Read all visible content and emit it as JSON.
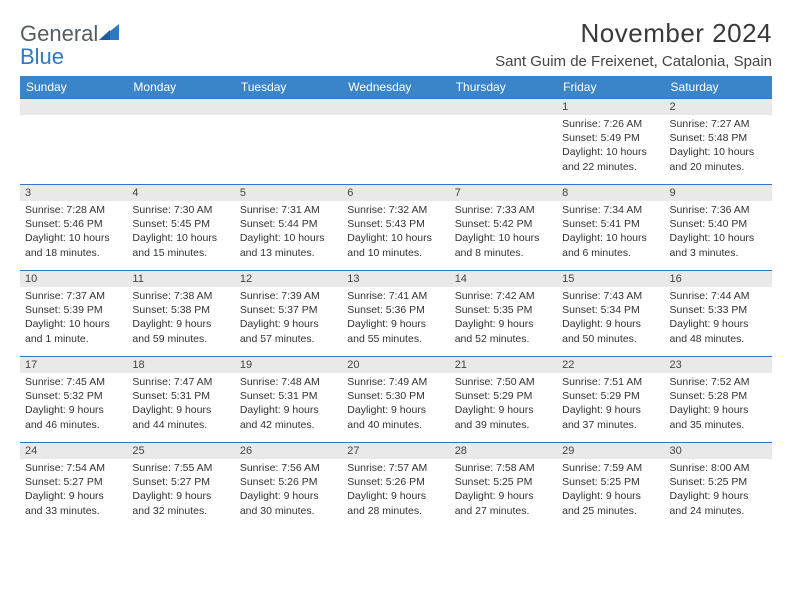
{
  "brand": {
    "part1": "General",
    "part2": "Blue"
  },
  "title": "November 2024",
  "location": "Sant Guim de Freixenet, Catalonia, Spain",
  "colors": {
    "header_bg": "#3a85c9",
    "header_text": "#ffffff",
    "daynum_bg": "#e9e9e9",
    "border": "#2f78c2",
    "brand_gray": "#555c63",
    "brand_blue": "#2f78c2",
    "page_bg": "#ffffff"
  },
  "weekdays": [
    "Sunday",
    "Monday",
    "Tuesday",
    "Wednesday",
    "Thursday",
    "Friday",
    "Saturday"
  ],
  "weeks": [
    [
      null,
      null,
      null,
      null,
      null,
      {
        "n": "1",
        "sr": "Sunrise: 7:26 AM",
        "ss": "Sunset: 5:49 PM",
        "dl": "Daylight: 10 hours and 22 minutes."
      },
      {
        "n": "2",
        "sr": "Sunrise: 7:27 AM",
        "ss": "Sunset: 5:48 PM",
        "dl": "Daylight: 10 hours and 20 minutes."
      }
    ],
    [
      {
        "n": "3",
        "sr": "Sunrise: 7:28 AM",
        "ss": "Sunset: 5:46 PM",
        "dl": "Daylight: 10 hours and 18 minutes."
      },
      {
        "n": "4",
        "sr": "Sunrise: 7:30 AM",
        "ss": "Sunset: 5:45 PM",
        "dl": "Daylight: 10 hours and 15 minutes."
      },
      {
        "n": "5",
        "sr": "Sunrise: 7:31 AM",
        "ss": "Sunset: 5:44 PM",
        "dl": "Daylight: 10 hours and 13 minutes."
      },
      {
        "n": "6",
        "sr": "Sunrise: 7:32 AM",
        "ss": "Sunset: 5:43 PM",
        "dl": "Daylight: 10 hours and 10 minutes."
      },
      {
        "n": "7",
        "sr": "Sunrise: 7:33 AM",
        "ss": "Sunset: 5:42 PM",
        "dl": "Daylight: 10 hours and 8 minutes."
      },
      {
        "n": "8",
        "sr": "Sunrise: 7:34 AM",
        "ss": "Sunset: 5:41 PM",
        "dl": "Daylight: 10 hours and 6 minutes."
      },
      {
        "n": "9",
        "sr": "Sunrise: 7:36 AM",
        "ss": "Sunset: 5:40 PM",
        "dl": "Daylight: 10 hours and 3 minutes."
      }
    ],
    [
      {
        "n": "10",
        "sr": "Sunrise: 7:37 AM",
        "ss": "Sunset: 5:39 PM",
        "dl": "Daylight: 10 hours and 1 minute."
      },
      {
        "n": "11",
        "sr": "Sunrise: 7:38 AM",
        "ss": "Sunset: 5:38 PM",
        "dl": "Daylight: 9 hours and 59 minutes."
      },
      {
        "n": "12",
        "sr": "Sunrise: 7:39 AM",
        "ss": "Sunset: 5:37 PM",
        "dl": "Daylight: 9 hours and 57 minutes."
      },
      {
        "n": "13",
        "sr": "Sunrise: 7:41 AM",
        "ss": "Sunset: 5:36 PM",
        "dl": "Daylight: 9 hours and 55 minutes."
      },
      {
        "n": "14",
        "sr": "Sunrise: 7:42 AM",
        "ss": "Sunset: 5:35 PM",
        "dl": "Daylight: 9 hours and 52 minutes."
      },
      {
        "n": "15",
        "sr": "Sunrise: 7:43 AM",
        "ss": "Sunset: 5:34 PM",
        "dl": "Daylight: 9 hours and 50 minutes."
      },
      {
        "n": "16",
        "sr": "Sunrise: 7:44 AM",
        "ss": "Sunset: 5:33 PM",
        "dl": "Daylight: 9 hours and 48 minutes."
      }
    ],
    [
      {
        "n": "17",
        "sr": "Sunrise: 7:45 AM",
        "ss": "Sunset: 5:32 PM",
        "dl": "Daylight: 9 hours and 46 minutes."
      },
      {
        "n": "18",
        "sr": "Sunrise: 7:47 AM",
        "ss": "Sunset: 5:31 PM",
        "dl": "Daylight: 9 hours and 44 minutes."
      },
      {
        "n": "19",
        "sr": "Sunrise: 7:48 AM",
        "ss": "Sunset: 5:31 PM",
        "dl": "Daylight: 9 hours and 42 minutes."
      },
      {
        "n": "20",
        "sr": "Sunrise: 7:49 AM",
        "ss": "Sunset: 5:30 PM",
        "dl": "Daylight: 9 hours and 40 minutes."
      },
      {
        "n": "21",
        "sr": "Sunrise: 7:50 AM",
        "ss": "Sunset: 5:29 PM",
        "dl": "Daylight: 9 hours and 39 minutes."
      },
      {
        "n": "22",
        "sr": "Sunrise: 7:51 AM",
        "ss": "Sunset: 5:29 PM",
        "dl": "Daylight: 9 hours and 37 minutes."
      },
      {
        "n": "23",
        "sr": "Sunrise: 7:52 AM",
        "ss": "Sunset: 5:28 PM",
        "dl": "Daylight: 9 hours and 35 minutes."
      }
    ],
    [
      {
        "n": "24",
        "sr": "Sunrise: 7:54 AM",
        "ss": "Sunset: 5:27 PM",
        "dl": "Daylight: 9 hours and 33 minutes."
      },
      {
        "n": "25",
        "sr": "Sunrise: 7:55 AM",
        "ss": "Sunset: 5:27 PM",
        "dl": "Daylight: 9 hours and 32 minutes."
      },
      {
        "n": "26",
        "sr": "Sunrise: 7:56 AM",
        "ss": "Sunset: 5:26 PM",
        "dl": "Daylight: 9 hours and 30 minutes."
      },
      {
        "n": "27",
        "sr": "Sunrise: 7:57 AM",
        "ss": "Sunset: 5:26 PM",
        "dl": "Daylight: 9 hours and 28 minutes."
      },
      {
        "n": "28",
        "sr": "Sunrise: 7:58 AM",
        "ss": "Sunset: 5:25 PM",
        "dl": "Daylight: 9 hours and 27 minutes."
      },
      {
        "n": "29",
        "sr": "Sunrise: 7:59 AM",
        "ss": "Sunset: 5:25 PM",
        "dl": "Daylight: 9 hours and 25 minutes."
      },
      {
        "n": "30",
        "sr": "Sunrise: 8:00 AM",
        "ss": "Sunset: 5:25 PM",
        "dl": "Daylight: 9 hours and 24 minutes."
      }
    ]
  ]
}
